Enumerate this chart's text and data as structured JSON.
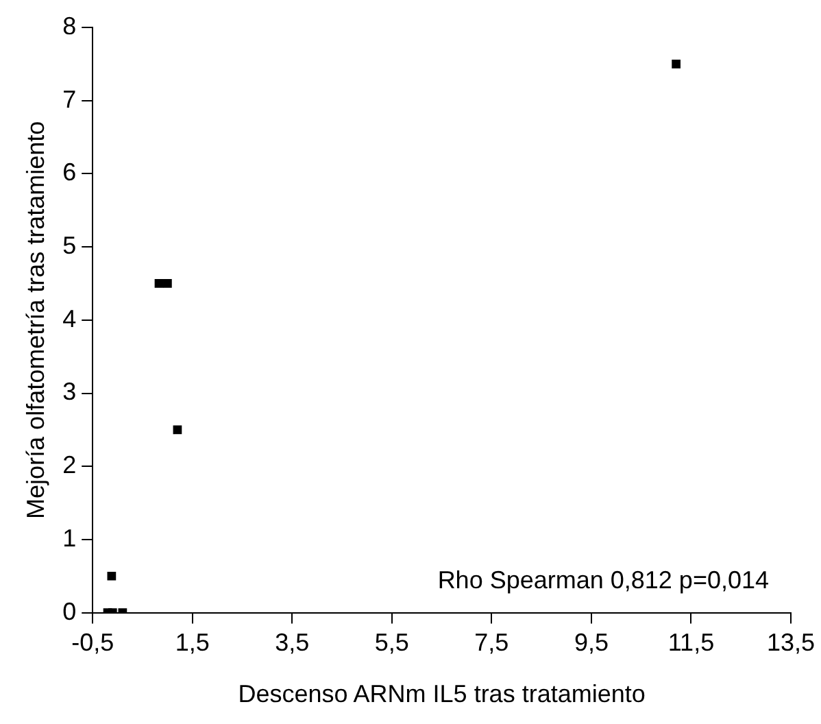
{
  "chart_data": {
    "type": "scatter",
    "xlabel": "Descenso ARNm IL5 tras tratamiento",
    "ylabel": "Mejoría olfatometría tras tratamiento",
    "x": [
      -0.2,
      -0.1,
      0.1,
      -0.12,
      0.83,
      1.0,
      1.2,
      11.2
    ],
    "values": [
      0,
      0,
      0,
      0.5,
      4.5,
      4.5,
      2.5,
      7.5
    ],
    "color": "#000000",
    "marker": "square",
    "grid": false,
    "legend": false,
    "xlim": [
      -0.5,
      13.5
    ],
    "xticks": [
      {
        "value": -0.5,
        "label": "-0,5"
      },
      {
        "value": 1.5,
        "label": "1,5"
      },
      {
        "value": 3.5,
        "label": "3,5"
      },
      {
        "value": 5.5,
        "label": "5,5"
      },
      {
        "value": 7.5,
        "label": "7,5"
      },
      {
        "value": 9.5,
        "label": "9,5"
      },
      {
        "value": 11.5,
        "label": "11,5"
      },
      {
        "value": 13.5,
        "label": "13,5"
      }
    ],
    "ylim": [
      0,
      8
    ],
    "yticks": [
      0,
      1,
      2,
      3,
      4,
      5,
      6,
      7,
      8
    ],
    "annotations": [
      "Rho Spearman 0,812 p=0,014"
    ]
  }
}
